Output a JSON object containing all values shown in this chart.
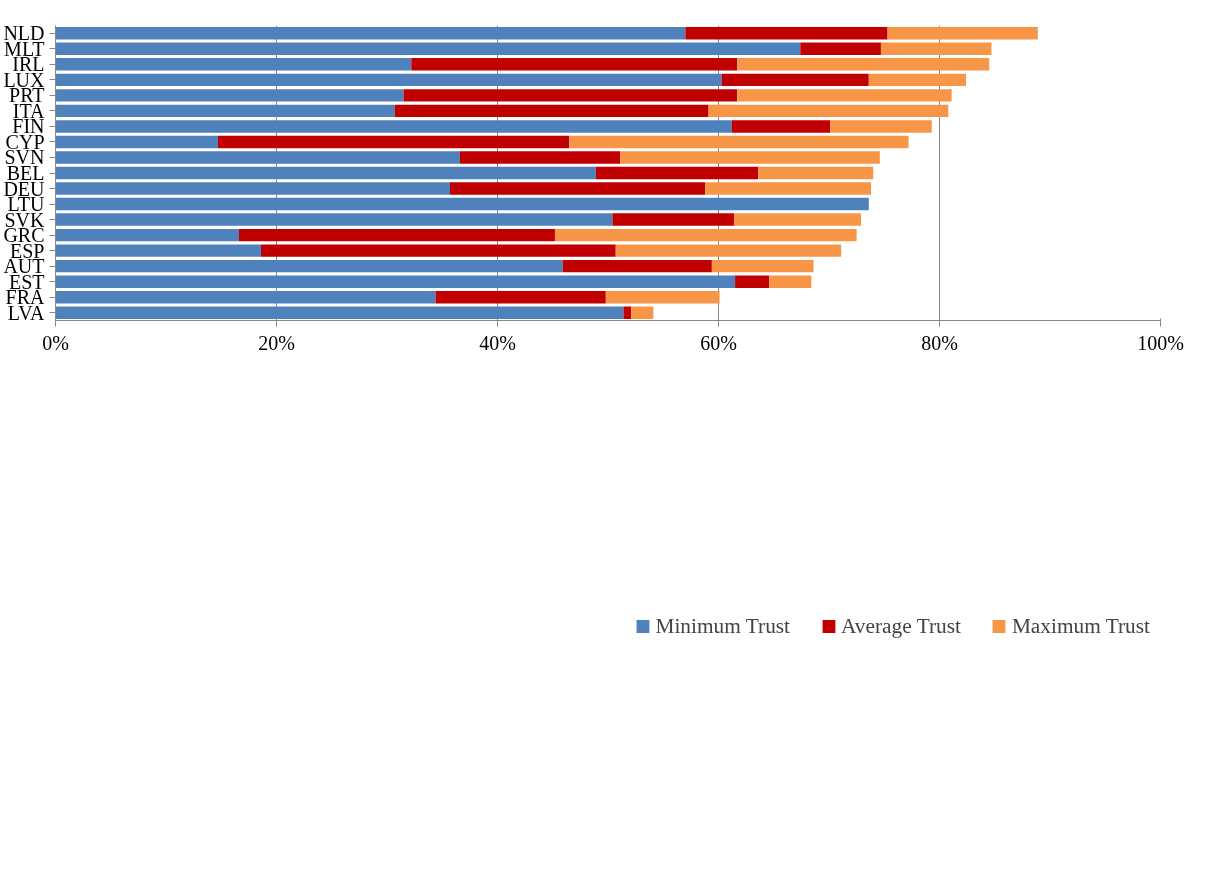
{
  "chart_data": {
    "type": "bar",
    "orientation": "horizontal",
    "stacked": true,
    "categories": [
      "NLD",
      "MLT",
      "IRL",
      "LUX",
      "PRT",
      "ITA",
      "FIN",
      "CYP",
      "SVN",
      "BEL",
      "DEU",
      "LTU",
      "SVK",
      "GRC",
      "ESP",
      "AUT",
      "EST",
      "FRA",
      "LVA"
    ],
    "series": [
      {
        "name": "Minimum Trust",
        "color": "#4f81bd",
        "values": [
          57.0,
          67.4,
          32.2,
          60.3,
          31.5,
          30.7,
          61.2,
          14.7,
          36.6,
          48.9,
          35.7,
          73.6,
          50.4,
          16.6,
          18.6,
          45.9,
          61.5,
          34.4,
          51.4
        ]
      },
      {
        "name": "Average Trust",
        "color": "#c00000",
        "values": [
          18.3,
          7.3,
          29.5,
          13.3,
          30.2,
          28.4,
          8.9,
          31.8,
          14.5,
          14.7,
          23.1,
          0,
          11.0,
          28.6,
          32.1,
          13.5,
          3.1,
          15.4,
          0.7
        ]
      },
      {
        "name": "Maximum Trust",
        "color": "#f79646",
        "values": [
          13.6,
          10.0,
          22.8,
          8.8,
          19.4,
          21.7,
          9.2,
          30.7,
          23.5,
          10.4,
          15.0,
          0,
          11.5,
          27.3,
          20.4,
          9.2,
          3.8,
          10.3,
          2.0
        ]
      }
    ],
    "xlim": [
      0,
      100
    ],
    "xticks": [
      {
        "value": 0,
        "label": "0%"
      },
      {
        "value": 20,
        "label": "20%"
      },
      {
        "value": 40,
        "label": "40%"
      },
      {
        "value": 60,
        "label": "60%"
      },
      {
        "value": 80,
        "label": "80%"
      },
      {
        "value": 100,
        "label": "100%"
      }
    ],
    "grid": "x",
    "legend": "bottom"
  }
}
